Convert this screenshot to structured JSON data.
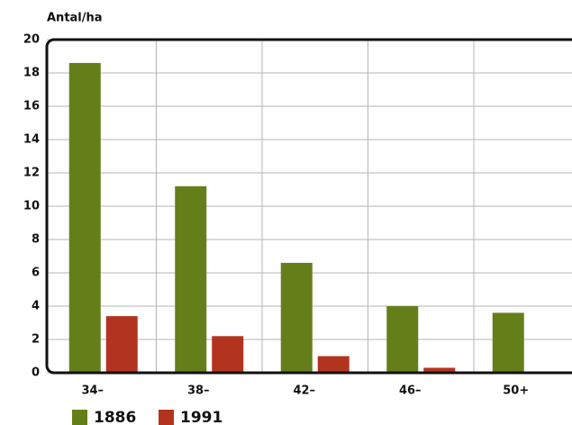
{
  "chart_data": {
    "type": "bar",
    "y_label": "Antal/ha",
    "categories": [
      "34–",
      "38–",
      "42–",
      "46–",
      "50+"
    ],
    "series": [
      {
        "name": "1886",
        "color": "#647f1a",
        "values": [
          18.6,
          11.2,
          6.6,
          4.0,
          3.6
        ]
      },
      {
        "name": "1991",
        "color": "#b2341f",
        "values": [
          3.4,
          2.2,
          1.0,
          0.3,
          0
        ]
      }
    ],
    "ylim": [
      0,
      20
    ],
    "yticks": [
      0,
      2,
      4,
      6,
      8,
      10,
      12,
      14,
      16,
      18,
      20
    ],
    "grid": true
  }
}
